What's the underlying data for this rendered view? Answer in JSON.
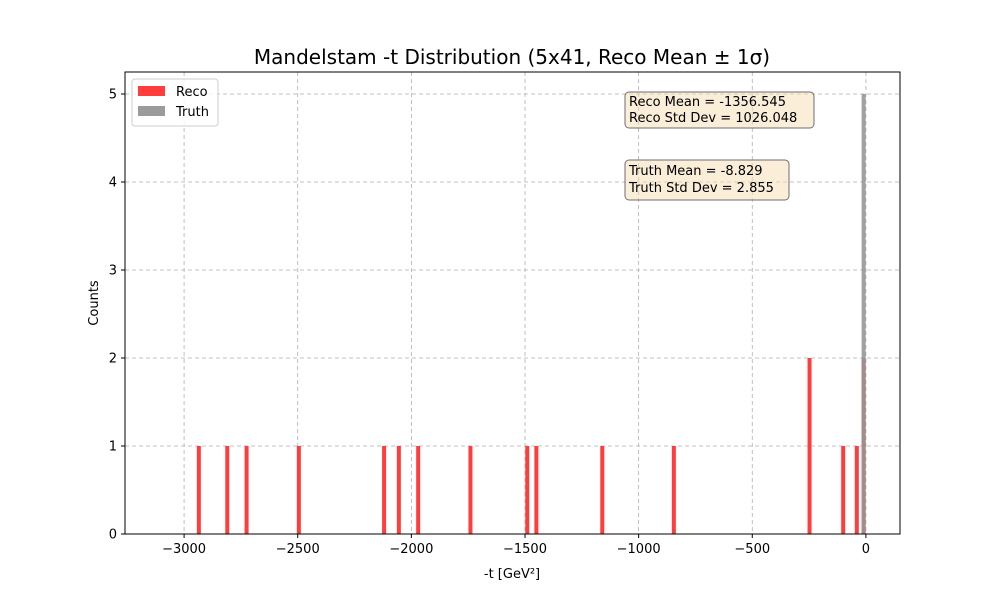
{
  "chart_data": {
    "type": "histogram",
    "title": "Mandelstam -t Distribution (5x41, Reco Mean ± 1σ)",
    "xlabel": "-t [GeV²]",
    "ylabel": "Counts",
    "xlim": [
      -3260,
      150
    ],
    "ylim": [
      0,
      5.25
    ],
    "xticks": [
      -3000,
      -2500,
      -2000,
      -1500,
      -1000,
      -500,
      0
    ],
    "xtick_labels": [
      "−3000",
      "−2500",
      "−2000",
      "−1500",
      "−1000",
      "−500",
      "0"
    ],
    "yticks": [
      0,
      1,
      2,
      3,
      4,
      5
    ],
    "ytick_labels": [
      "0",
      "1",
      "2",
      "3",
      "4",
      "5"
    ],
    "grid": true,
    "legend_position": "top-left",
    "series": [
      {
        "name": "Reco",
        "color": "#ff3333",
        "bin_width": 17,
        "bins": [
          {
            "x": -2935,
            "count": 1
          },
          {
            "x": -2810,
            "count": 1
          },
          {
            "x": -2725,
            "count": 1
          },
          {
            "x": -2495,
            "count": 1
          },
          {
            "x": -2120,
            "count": 1
          },
          {
            "x": -2055,
            "count": 1
          },
          {
            "x": -1970,
            "count": 1
          },
          {
            "x": -1740,
            "count": 1
          },
          {
            "x": -1490,
            "count": 1
          },
          {
            "x": -1450,
            "count": 1
          },
          {
            "x": -1160,
            "count": 1
          },
          {
            "x": -845,
            "count": 1
          },
          {
            "x": -248,
            "count": 2
          },
          {
            "x": -100,
            "count": 1
          },
          {
            "x": -40,
            "count": 1
          },
          {
            "x": -10,
            "count": 2
          }
        ]
      },
      {
        "name": "Truth",
        "color": "#969696",
        "bin_width": 12,
        "bins": [
          {
            "x": -10,
            "count": 5
          }
        ]
      }
    ],
    "annotations": [
      {
        "lines": [
          "Reco Mean = -1356.545",
          "Reco Std Dev = 1026.048"
        ]
      },
      {
        "lines": [
          "Truth Mean = -8.829",
          "Truth Std Dev = 2.855"
        ]
      }
    ]
  }
}
